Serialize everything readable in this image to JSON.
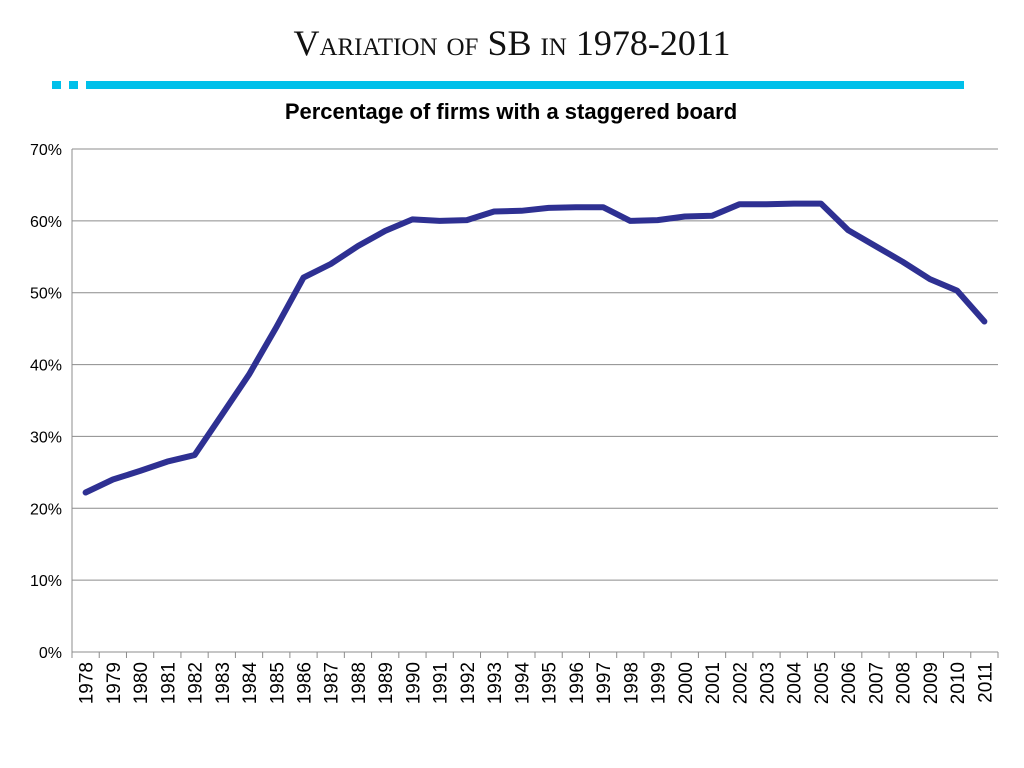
{
  "slide": {
    "title": "Variation of SB in 1978-2011",
    "accent_color": "#00C0EA"
  },
  "chart_data": {
    "type": "line",
    "title": "Percentage of firms with a staggered board",
    "xlabel": "",
    "ylabel": "",
    "ylim": [
      0,
      0.7
    ],
    "y_ticks": [
      "0%",
      "10%",
      "20%",
      "30%",
      "40%",
      "50%",
      "60%",
      "70%"
    ],
    "grid": true,
    "legend": "none",
    "x": [
      "1978",
      "1979",
      "1980",
      "1981",
      "1982",
      "1983",
      "1984",
      "1985",
      "1986",
      "1987",
      "1988",
      "1989",
      "1990",
      "1991",
      "1992",
      "1993",
      "1994",
      "1995",
      "1996",
      "1997",
      "1998",
      "1999",
      "2000",
      "2001",
      "2002",
      "2003",
      "2004",
      "2005",
      "2006",
      "2007",
      "2008",
      "2009",
      "2010",
      "2011"
    ],
    "series": [
      {
        "color": "#2E3092",
        "values": [
          0.222,
          0.24,
          0.252,
          0.265,
          0.274,
          0.33,
          0.386,
          0.452,
          0.521,
          0.54,
          0.565,
          0.586,
          0.602,
          0.6,
          0.601,
          0.613,
          0.614,
          0.618,
          0.619,
          0.619,
          0.6,
          0.601,
          0.606,
          0.607,
          0.623,
          0.623,
          0.624,
          0.624,
          0.587,
          0.565,
          0.543,
          0.519,
          0.503,
          0.46
        ]
      }
    ]
  }
}
